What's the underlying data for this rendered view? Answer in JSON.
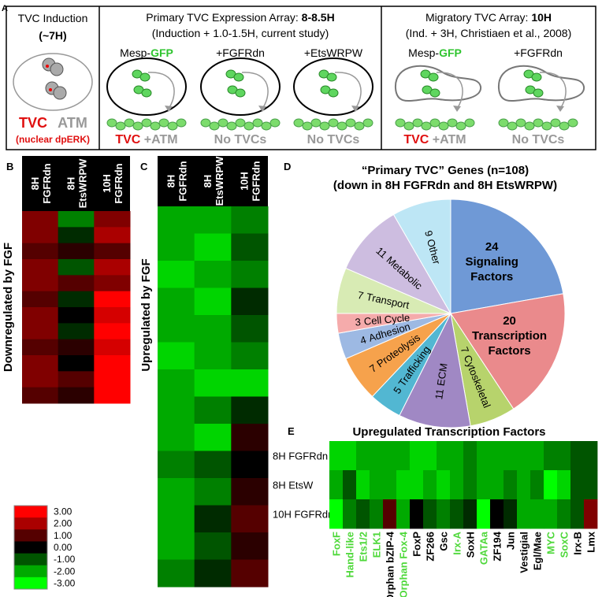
{
  "panel_a": {
    "letter": "A",
    "induction": {
      "title": "TVC Induction",
      "time": "(~7H)",
      "tvc": "TVC",
      "atm": "ATM",
      "note": "(nuclear dpERK)"
    },
    "primary": {
      "title": "Primary TVC Expression Array: ",
      "time": "8-8.5H",
      "subtitle": "(Induction + 1.0-1.5H, current study)",
      "conditions": [
        {
          "label": [
            "Mesp-",
            "GFP"
          ],
          "result": [
            "TVC",
            " +ATM"
          ]
        },
        {
          "label": [
            "+FGFRdn"
          ],
          "result": [
            "No TVCs"
          ]
        },
        {
          "label": [
            "+EtsWRPW"
          ],
          "result": [
            "No TVCs"
          ]
        }
      ]
    },
    "migratory": {
      "title": "Migratory TVC Array: ",
      "time": "10H",
      "subtitle": "(Ind. + 3H, Christiaen et al., 2008)",
      "conditions": [
        {
          "label": [
            "Mesp-",
            "GFP"
          ],
          "result": [
            "TVC",
            " +ATM"
          ]
        },
        {
          "label": [
            "+FGFRdn"
          ],
          "result": [
            "No TVCs"
          ]
        }
      ]
    }
  },
  "panel_b": {
    "letter": "B",
    "side_label": "Downregulated by FGF",
    "columns": [
      [
        "8H",
        "FGFRdn"
      ],
      [
        "8H",
        "EtsWRPW"
      ],
      [
        "10H",
        "FGFRdn"
      ]
    ],
    "rows": [
      [
        1.5,
        -1.5,
        1.5
      ],
      [
        1.5,
        -0.5,
        2
      ],
      [
        1,
        0.5,
        1
      ],
      [
        1.5,
        -1,
        2
      ],
      [
        1.5,
        1,
        1.5
      ],
      [
        1,
        -0.5,
        3
      ],
      [
        1.5,
        0,
        2.5
      ],
      [
        1.5,
        -0.5,
        3
      ],
      [
        1,
        0.5,
        2.5
      ],
      [
        1.5,
        0,
        3
      ],
      [
        1.5,
        1,
        3
      ],
      [
        1,
        0.5,
        3
      ]
    ]
  },
  "panel_c": {
    "letter": "C",
    "side_label": "Upregulated by FGF",
    "columns": [
      [
        "8H",
        "FGFRdn"
      ],
      [
        "8H",
        "EtsWRPW"
      ],
      [
        "10H",
        "FGFRdn"
      ]
    ],
    "rows": [
      [
        -2,
        -2,
        -1.5
      ],
      [
        -2,
        -2.5,
        -1
      ],
      [
        -2.5,
        -2,
        -1.5
      ],
      [
        -2,
        -2.5,
        -0.5
      ],
      [
        -2,
        -2,
        -1
      ],
      [
        -2.5,
        -2,
        -1.5
      ],
      [
        -2,
        -2.5,
        -2.5
      ],
      [
        -2,
        -1.5,
        -0.5
      ],
      [
        -2,
        -2.5,
        0.5
      ],
      [
        -1.5,
        -1,
        0
      ],
      [
        -2,
        -1.5,
        0.5
      ],
      [
        -2,
        -0.5,
        1
      ],
      [
        -2,
        -1,
        0.5
      ],
      [
        -1.5,
        -0.5,
        1
      ]
    ]
  },
  "color_scale": {
    "ticks": [
      {
        "value": 3,
        "label": "3.00"
      },
      {
        "value": 2,
        "label": "2.00"
      },
      {
        "value": 1,
        "label": "1.00"
      },
      {
        "value": 0,
        "label": "0.00"
      },
      {
        "value": -1,
        "label": "-1.00"
      },
      {
        "value": -2,
        "label": "-2.00"
      },
      {
        "value": -3,
        "label": "-3.00"
      }
    ]
  },
  "panel_d": {
    "letter": "D",
    "title": "“Primary TVC” Genes  (n=108)",
    "subtitle": "(down in 8H FGFRdn and 8H EtsWRPW)",
    "slices": [
      {
        "value": 24,
        "name": [
          "Signaling",
          "Factors"
        ],
        "color": "#6f99d6"
      },
      {
        "value": 20,
        "name": [
          "Transcription",
          "Factors"
        ],
        "color": "#ea8a8c"
      },
      {
        "value": 7,
        "name": [
          "Cytoskeletal"
        ],
        "color": "#b7d36c"
      },
      {
        "value": 11,
        "name": [
          "ECM"
        ],
        "color": "#a088c4"
      },
      {
        "value": 5,
        "name": [
          "Trafficking"
        ],
        "color": "#52b7d2"
      },
      {
        "value": 7,
        "name": [
          "Proteolysis"
        ],
        "color": "#f6a24c"
      },
      {
        "value": 4,
        "name": [
          "Adhesion"
        ],
        "color": "#9db9e3"
      },
      {
        "value": 3,
        "name": [
          "Cell Cycle"
        ],
        "color": "#f5abab"
      },
      {
        "value": 7,
        "name": [
          "Transport"
        ],
        "color": "#d8ebb4"
      },
      {
        "value": 11,
        "name": [
          "Metabolic"
        ],
        "color": "#cdbde0"
      },
      {
        "value": 9,
        "name": [
          "Other"
        ],
        "color": "#bde6f5"
      }
    ]
  },
  "panel_e": {
    "letter": "E",
    "title": "Upregulated Transcription Factors",
    "row_labels": [
      "8H FGFRdn",
      "8H EtsW",
      "10H FGFRdn"
    ],
    "genes": [
      {
        "name": "FoxF",
        "color": "#4ed83a"
      },
      {
        "name": "Hand-like",
        "color": "#4ed83a"
      },
      {
        "name": "Ets1/2",
        "color": "#4ed83a"
      },
      {
        "name": "ELK1",
        "color": "#4ed83a"
      },
      {
        "name": "Orphan bZIP-4",
        "color": "#000000"
      },
      {
        "name": "Orphan Fox-4",
        "color": "#4ed83a"
      },
      {
        "name": "FoxP",
        "color": "#000000"
      },
      {
        "name": "ZF266",
        "color": "#000000"
      },
      {
        "name": "Gsc",
        "color": "#000000"
      },
      {
        "name": "Irx-A",
        "color": "#4ed83a"
      },
      {
        "name": "SoxH",
        "color": "#000000"
      },
      {
        "name": "GATAa",
        "color": "#4ed83a"
      },
      {
        "name": "ZF194",
        "color": "#000000"
      },
      {
        "name": "Jun",
        "color": "#000000"
      },
      {
        "name": "Vestigial",
        "color": "#000000"
      },
      {
        "name": "Egl/Mae",
        "color": "#000000"
      },
      {
        "name": "MYC",
        "color": "#4ed83a"
      },
      {
        "name": "SoxC",
        "color": "#4ed83a"
      },
      {
        "name": "Irx-B",
        "color": "#000000"
      },
      {
        "name": "Lmx",
        "color": "#000000"
      }
    ],
    "rows": [
      [
        -2.5,
        -2.5,
        -2,
        -2,
        -2,
        -2,
        -2.5,
        -2.5,
        -2,
        -2,
        -1.5,
        -2,
        -2,
        -2,
        -2,
        -2,
        -1.5,
        -1.5,
        -1,
        -1
      ],
      [
        -2,
        -1,
        -2.5,
        -2,
        -2,
        -2.5,
        -2.5,
        -2,
        -2.5,
        -2,
        -1.5,
        -2,
        -2,
        -1.5,
        -2,
        -1.5,
        -3,
        -2.5,
        -1,
        -1
      ],
      [
        -3,
        -1.5,
        -1,
        -1.5,
        1,
        -2,
        0,
        -1,
        -1.5,
        -1,
        -0.5,
        -3,
        0,
        -0.5,
        -2,
        -2,
        -2,
        -1.5,
        -1,
        1.5
      ]
    ]
  }
}
